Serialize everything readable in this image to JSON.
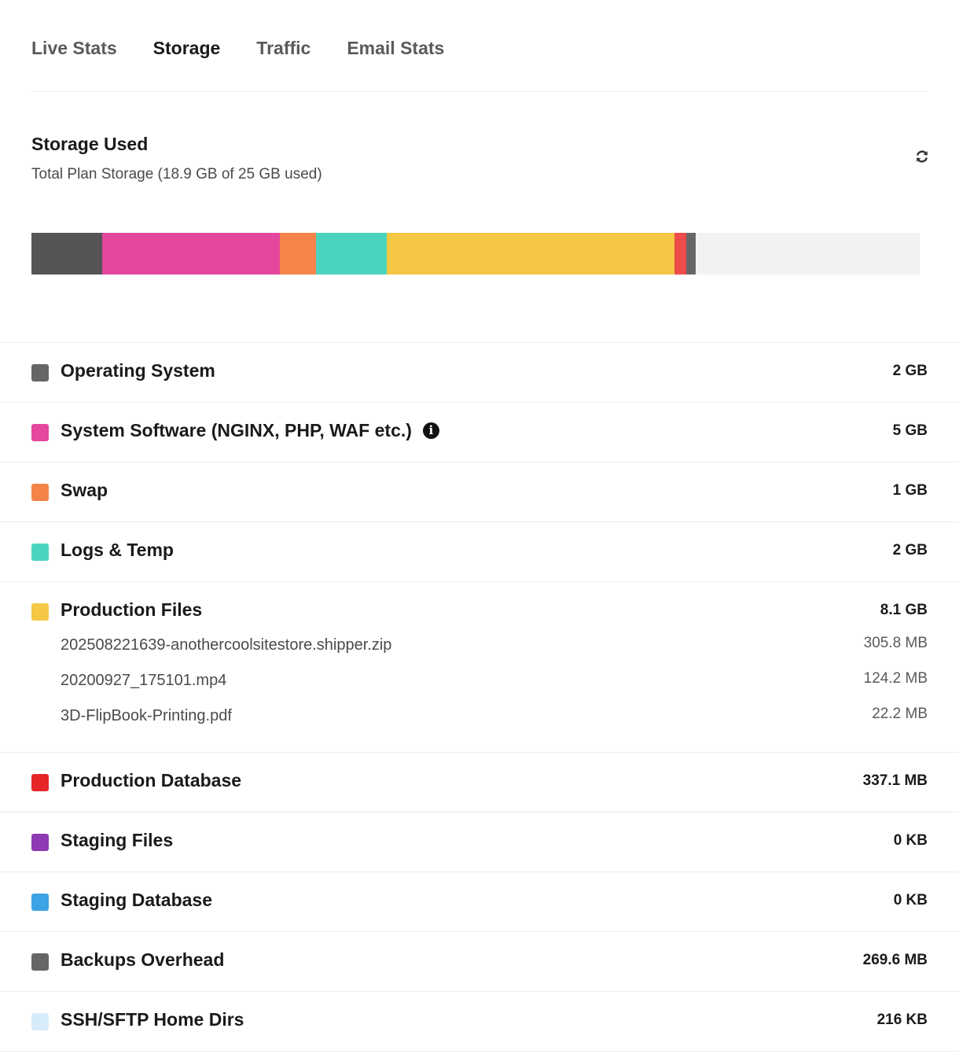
{
  "tabs": [
    {
      "label": "Live Stats",
      "active": false
    },
    {
      "label": "Storage",
      "active": true
    },
    {
      "label": "Traffic",
      "active": false
    },
    {
      "label": "Email Stats",
      "active": false
    }
  ],
  "storage": {
    "title": "Storage Used",
    "subtitle": "Total Plan Storage (18.9 GB of 25 GB used)",
    "used_gb": 18.9,
    "total_gb": 25,
    "refresh_icon": "refresh-icon",
    "bar_remainder_color": "#f2f2f2"
  },
  "usage_bar": [
    {
      "category": "Operating System",
      "gb": 2,
      "color": "#555555"
    },
    {
      "category": "System Software (NGINX, PHP, WAF etc.)",
      "gb": 5,
      "color": "#e4479d"
    },
    {
      "category": "Swap",
      "gb": 1,
      "color": "#f5844a"
    },
    {
      "category": "Logs & Temp",
      "gb": 2,
      "color": "#4bd4bd"
    },
    {
      "category": "Production Files",
      "gb": 8.1,
      "color": "#f4c745"
    },
    {
      "category": "Production Database",
      "gb": 0.3371,
      "color": "#ee4b4b"
    },
    {
      "category": "Backups Overhead",
      "gb": 0.2696,
      "color": "#666666"
    }
  ],
  "categories": [
    {
      "label": "Operating System",
      "size": "2 GB",
      "color": "#666666"
    },
    {
      "label": "System Software (NGINX, PHP, WAF etc.)",
      "size": "5 GB",
      "color": "#e4479d",
      "info_icon": "info-icon"
    },
    {
      "label": "Swap",
      "size": "1 GB",
      "color": "#f5844a"
    },
    {
      "label": "Logs & Temp",
      "size": "2 GB",
      "color": "#4bd4bd"
    },
    {
      "label": "Production Files",
      "size": "8.1 GB",
      "color": "#f4c745",
      "files": [
        {
          "name": "202508221639-anothercoolsitestore.shipper.zip",
          "size": "305.8 MB"
        },
        {
          "name": "20200927_175101.mp4",
          "size": "124.2 MB"
        },
        {
          "name": "3D-FlipBook-Printing.pdf",
          "size": "22.2 MB"
        }
      ]
    },
    {
      "label": "Production Database",
      "size": "337.1 MB",
      "color": "#e52528"
    },
    {
      "label": "Staging Files",
      "size": "0 KB",
      "color": "#8e3ab5"
    },
    {
      "label": "Staging Database",
      "size": "0 KB",
      "color": "#3ba4e4"
    },
    {
      "label": "Backups Overhead",
      "size": "269.6 MB",
      "color": "#666666"
    },
    {
      "label": "SSH/SFTP Home Dirs",
      "size": "216 KB",
      "color": "#d7ecfb"
    }
  ]
}
